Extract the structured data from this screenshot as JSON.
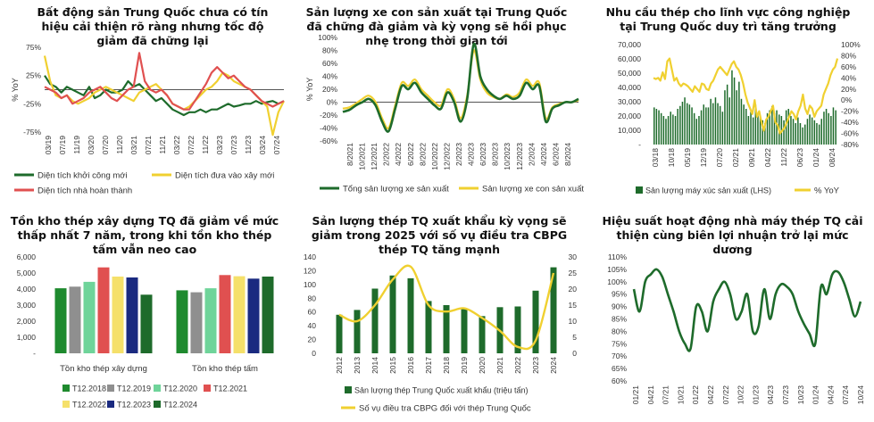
{
  "chart_data": [
    {
      "id": "c1",
      "type": "line",
      "title": "Bất động sản Trung Quốc chưa có tín hiệu cải thiện rõ ràng nhưng tốc độ giảm đã chững lại",
      "ylabel": "% YoY",
      "ylim": [
        -75,
        75
      ],
      "yticks": [
        "75%",
        "25%",
        "-25%",
        "-75%"
      ],
      "xticks": [
        "03/19",
        "07/19",
        "11/19",
        "03/20",
        "07/20",
        "11/20",
        "03/21",
        "07/21",
        "11/21",
        "03/22",
        "07/22",
        "11/22",
        "03/23",
        "07/23",
        "11/23",
        "03/24",
        "07/24"
      ],
      "series": [
        {
          "name": "Diện tích khởi công mới",
          "color": "#1e6b2b",
          "values": [
            25,
            10,
            5,
            -5,
            5,
            0,
            -5,
            -10,
            5,
            -15,
            -10,
            0,
            -5,
            -5,
            0,
            15,
            5,
            10,
            0,
            -10,
            -20,
            -15,
            -25,
            -35,
            -40,
            -45,
            -40,
            -40,
            -35,
            -40,
            -35,
            -35,
            -30,
            -25,
            -30,
            -28,
            -25,
            -25,
            -20,
            -25,
            -22,
            -20,
            -25,
            -20
          ]
        },
        {
          "name": "Diện tích đưa vào xây mới",
          "color": "#f0d030",
          "values": [
            60,
            15,
            -10,
            -15,
            -10,
            -20,
            -25,
            -20,
            -15,
            -5,
            0,
            5,
            0,
            -5,
            -10,
            -15,
            -20,
            -5,
            0,
            5,
            10,
            0,
            -10,
            -25,
            -30,
            -35,
            -30,
            -20,
            -10,
            0,
            5,
            15,
            30,
            25,
            15,
            10,
            5,
            0,
            -10,
            -20,
            -30,
            -80,
            -40,
            -20
          ]
        },
        {
          "name": "Diện tích nhà hoàn thành",
          "color": "#e05050",
          "values": [
            5,
            0,
            -5,
            -15,
            -10,
            -25,
            -20,
            -15,
            -5,
            0,
            5,
            -5,
            -15,
            -20,
            -10,
            0,
            5,
            65,
            15,
            0,
            -5,
            0,
            -10,
            -25,
            -30,
            -35,
            -35,
            -20,
            -5,
            10,
            30,
            40,
            30,
            20,
            25,
            15,
            5,
            0,
            -10,
            -20,
            -25,
            -30,
            -25,
            -20
          ]
        }
      ]
    },
    {
      "id": "c2",
      "type": "line",
      "title": "Sản lượng xe con sản xuất tại Trung Quốc đã chững đà giảm và kỳ vọng sẽ hồi phục nhẹ trong thời gian tới",
      "ylabel": "% YoY",
      "ylim": [
        -60,
        100
      ],
      "yticks": [
        "100%",
        "80%",
        "60%",
        "40%",
        "20%",
        "0%",
        "-20%",
        "-40%",
        "-60%"
      ],
      "xticks": [
        "8/2021",
        "10/2021",
        "12/2021",
        "2/2022",
        "4/2022",
        "6/2022",
        "8/2022",
        "10/2022",
        "12/2022",
        "2/2023",
        "4/2023",
        "6/2023",
        "8/2023",
        "10/2023",
        "12/2023",
        "2/2024",
        "4/2024",
        "6/2024",
        "8/2024"
      ],
      "series": [
        {
          "name": "Tổng sản lượng xe sản xuất",
          "color": "#1e6b2b",
          "values": [
            -15,
            -12,
            -5,
            0,
            5,
            -5,
            -30,
            -45,
            -10,
            25,
            20,
            30,
            15,
            5,
            -5,
            -10,
            15,
            0,
            -30,
            5,
            90,
            40,
            20,
            10,
            5,
            10,
            5,
            10,
            30,
            20,
            25,
            -30,
            -10,
            -5,
            0,
            0,
            5
          ]
        },
        {
          "name": "Sản lượng xe con sản xuất",
          "color": "#f0d030",
          "values": [
            -10,
            -8,
            -2,
            5,
            10,
            0,
            -25,
            -40,
            -5,
            30,
            25,
            35,
            20,
            10,
            0,
            -5,
            20,
            5,
            -25,
            10,
            80,
            35,
            15,
            8,
            5,
            12,
            8,
            15,
            35,
            25,
            30,
            -25,
            -8,
            -3,
            0,
            0,
            3
          ]
        }
      ]
    },
    {
      "id": "c3",
      "type": "bar",
      "title": "Nhu cầu thép cho lĩnh vực công nghiệp tại Trung Quốc duy trì tăng trưởng",
      "ylim_left": [
        0,
        70000
      ],
      "yticks_left": [
        "70,000",
        "60,000",
        "50,000",
        "40,000",
        "30,000",
        "20,000",
        "10,000",
        "-"
      ],
      "ylim_right": [
        -80,
        100
      ],
      "yticks_right": [
        "100%",
        "80%",
        "60%",
        "40%",
        "20%",
        "0%",
        "-20%",
        "-40%",
        "-60%",
        "-80%"
      ],
      "xticks": [
        "03/18",
        "10/18",
        "05/19",
        "12/19",
        "07/20",
        "02/21",
        "09/21",
        "04/22",
        "11/22",
        "06/23",
        "01/24",
        "08/24"
      ],
      "series": [
        {
          "name": "Sản lượng máy xúc sản xuất (LHS)",
          "color": "#1e6b2b",
          "axis": "left",
          "values": [
            26000,
            25000,
            24000,
            22000,
            20000,
            18000,
            20000,
            23000,
            21000,
            20000,
            25000,
            27000,
            30000,
            33000,
            29000,
            28000,
            26000,
            22000,
            18000,
            20000,
            24000,
            28000,
            26000,
            26000,
            32000,
            29000,
            33000,
            29000,
            27000,
            23000,
            38000,
            42000,
            33000,
            52000,
            47000,
            38000,
            44000,
            32000,
            28000,
            25000,
            20000,
            23000,
            19000,
            28000,
            21000,
            19000,
            17000,
            15000,
            22000,
            24000,
            27000,
            22000,
            24000,
            21000,
            20000,
            17000,
            24000,
            25000,
            20000,
            18000,
            15000,
            19000,
            15000,
            12000,
            14000,
            18000,
            21000,
            19000,
            17000,
            15000,
            14000,
            18000,
            23000,
            25000,
            22000,
            20000,
            26000,
            24000
          ]
        },
        {
          "name": "% YoY",
          "color": "#f0d030",
          "axis": "right",
          "values": [
            40,
            38,
            40,
            35,
            50,
            38,
            70,
            75,
            55,
            35,
            40,
            30,
            25,
            30,
            28,
            25,
            20,
            15,
            25,
            20,
            15,
            30,
            28,
            20,
            18,
            30,
            35,
            45,
            55,
            60,
            55,
            50,
            45,
            55,
            65,
            70,
            60,
            55,
            45,
            30,
            10,
            -5,
            -15,
            -25,
            0,
            -30,
            -20,
            -40,
            -55,
            -35,
            -30,
            -20,
            -10,
            -40,
            -45,
            -60,
            -55,
            -50,
            -40,
            -30,
            -20,
            -25,
            -35,
            -20,
            -10,
            10,
            -15,
            -25,
            -10,
            -15,
            -30,
            -20,
            -15,
            -10,
            10,
            20,
            30,
            45,
            55,
            60,
            75
          ]
        }
      ]
    },
    {
      "id": "c4",
      "type": "bar",
      "title": "Tồn kho thép xây dựng TQ đã giảm về mức thấp nhất 7 năm, trong khi tồn kho thép tấm vẫn neo cao",
      "ylim": [
        0,
        6000
      ],
      "yticks": [
        "6,000",
        "5,000",
        "4,000",
        "3,000",
        "2,000",
        "1,000",
        "-"
      ],
      "categories": [
        "Tồn kho thép xây dựng",
        "Tồn kho thép tấm"
      ],
      "series": [
        {
          "name": "T12.2018",
          "color": "#1e8a2e",
          "values": [
            4050,
            3920
          ]
        },
        {
          "name": "T12.2019",
          "color": "#8f8f8f",
          "values": [
            4150,
            3800
          ]
        },
        {
          "name": "T12.2020",
          "color": "#6fd49a",
          "values": [
            4450,
            4050
          ]
        },
        {
          "name": "T12.2021",
          "color": "#e05050",
          "values": [
            5350,
            4870
          ]
        },
        {
          "name": "T12.2022",
          "color": "#f5e06a",
          "values": [
            4780,
            4800
          ]
        },
        {
          "name": "T12.2023",
          "color": "#1a2a80",
          "values": [
            4720,
            4650
          ]
        },
        {
          "name": "T12.2024",
          "color": "#1e6b2b",
          "values": [
            3650,
            4780
          ]
        }
      ]
    },
    {
      "id": "c5",
      "type": "bar",
      "title": "Sản lượng thép TQ xuất khẩu kỳ vọng sẽ giảm trong 2025 với số vụ điều tra CBPG thép TQ tăng mạnh",
      "ylim_left": [
        0,
        140
      ],
      "yticks_left": [
        "140",
        "120",
        "100",
        "80",
        "60",
        "40",
        "20",
        "0"
      ],
      "ylim_right": [
        0,
        30
      ],
      "yticks_right": [
        "30",
        "25",
        "20",
        "15",
        "10",
        "5",
        "0"
      ],
      "categories": [
        "2012",
        "2013",
        "2014",
        "2015",
        "2016",
        "2017",
        "2018",
        "2019",
        "2020",
        "2021",
        "2022",
        "2023",
        "2024"
      ],
      "series": [
        {
          "name": "Sản lượng thép Trung Quốc xuất khẩu (triệu tấn)",
          "color": "#1e6b2b",
          "axis": "left",
          "values": [
            56,
            63,
            94,
            113,
            109,
            76,
            70,
            65,
            54,
            67,
            68,
            91,
            125
          ]
        },
        {
          "name": "Số vụ điều tra CBPG đối với thép Trung Quốc",
          "color": "#f0d030",
          "axis": "right",
          "values": [
            12,
            10,
            15,
            23,
            27,
            15,
            13,
            14,
            11,
            7,
            2,
            4,
            25
          ]
        }
      ]
    },
    {
      "id": "c6",
      "type": "line",
      "title": "Hiệu suất hoạt động nhà máy thép TQ cải thiện cùng biên lợi nhuận trở lại mức dương",
      "ylim": [
        60,
        110
      ],
      "yticks": [
        "110%",
        "105%",
        "100%",
        "95%",
        "90%",
        "85%",
        "80%",
        "75%",
        "70%",
        "65%",
        "60%"
      ],
      "xticks": [
        "01/21",
        "04/21",
        "07/21",
        "10/21",
        "01/22",
        "04/22",
        "07/22",
        "10/22",
        "01/23",
        "04/23",
        "07/23",
        "10/23",
        "01/24",
        "04/24",
        "07/24",
        "10/24"
      ],
      "series": [
        {
          "name": "",
          "color": "#1e6b2b",
          "values": [
            97,
            88,
            100,
            103,
            105,
            102,
            95,
            88,
            80,
            75,
            73,
            90,
            88,
            80,
            92,
            97,
            100,
            95,
            85,
            88,
            95,
            80,
            82,
            97,
            85,
            95,
            99,
            98,
            95,
            88,
            83,
            79,
            75,
            98,
            95,
            103,
            104,
            100,
            93,
            86,
            92
          ]
        }
      ]
    }
  ]
}
